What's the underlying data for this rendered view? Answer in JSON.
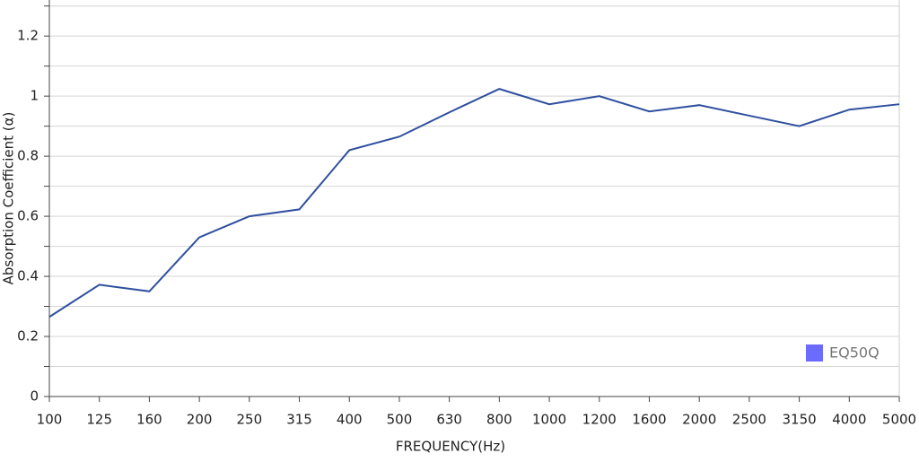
{
  "chart_data": {
    "type": "line",
    "x_label": "FREQUENCY(Hz)",
    "y_label": "Absorption Coefficient (α)",
    "categories": [
      "100",
      "125",
      "160",
      "200",
      "250",
      "315",
      "400",
      "500",
      "630",
      "800",
      "1000",
      "1200",
      "1600",
      "2000",
      "2500",
      "3150",
      "4000",
      "5000"
    ],
    "series": [
      {
        "name": "EQ50Q",
        "color": "#2f4f9f",
        "legend_color": "#6b6bff",
        "values": [
          0.265,
          0.372,
          0.35,
          0.53,
          0.6,
          0.623,
          0.82,
          0.865,
          0.946,
          1.024,
          0.973,
          1.0,
          0.949,
          0.97,
          0.935,
          0.9,
          0.955,
          0.973
        ]
      }
    ],
    "ylim": [
      0,
      1.32
    ],
    "yticks": [
      0,
      0.2,
      0.4,
      0.6,
      0.8,
      1.0,
      1.2
    ],
    "minor_yticks": [
      0.1,
      0.3,
      0.5,
      0.7,
      0.9,
      1.1,
      1.3
    ],
    "grid": true,
    "legend": "lower right"
  }
}
